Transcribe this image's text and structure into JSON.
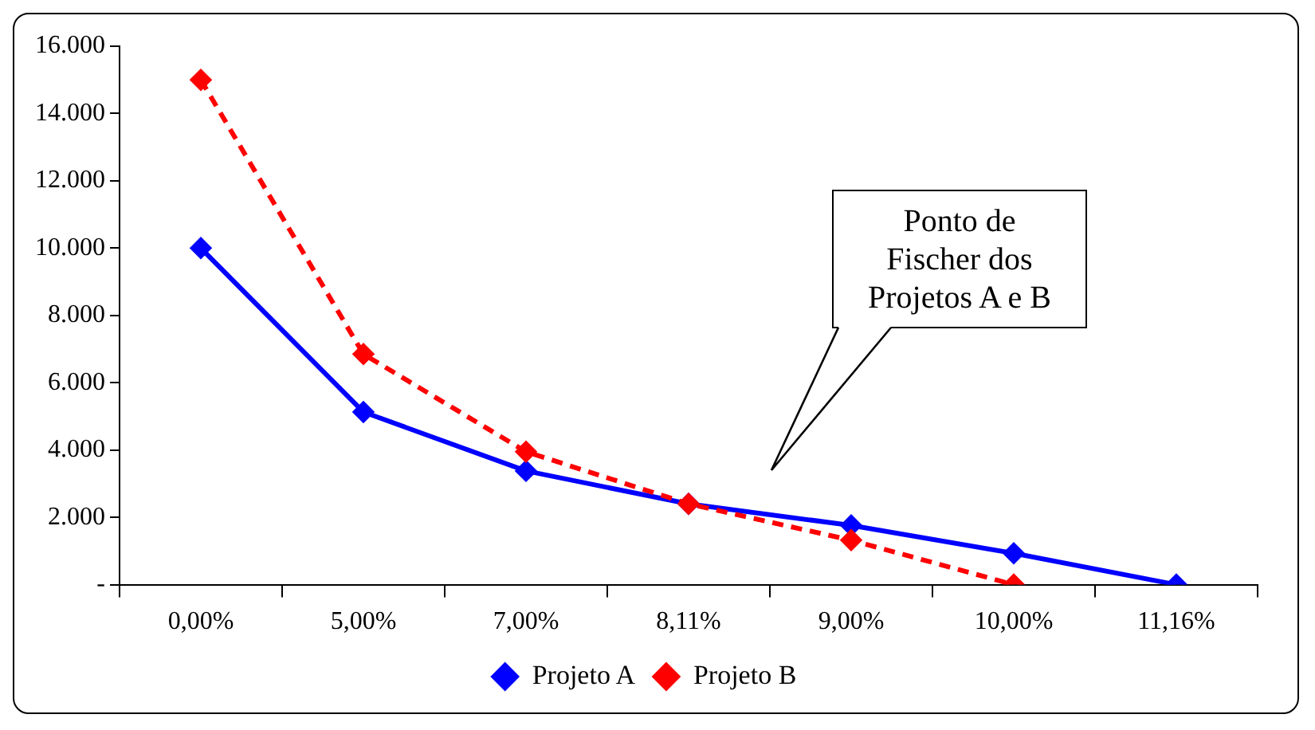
{
  "chart_data": {
    "type": "line",
    "categories": [
      "0,00%",
      "5,00%",
      "7,00%",
      "8,11%",
      "9,00%",
      "10,00%",
      "11,16%"
    ],
    "series": [
      {
        "name": "Projeto A",
        "color": "#0000ff",
        "values": [
          10000,
          5130,
          3380,
          2400,
          1760,
          930,
          0
        ],
        "line_style": "solid"
      },
      {
        "name": "Projeto B",
        "color": "#ff0000",
        "values": [
          15000,
          6850,
          3950,
          2400,
          1320,
          0,
          null
        ],
        "line_style": "dashed"
      }
    ],
    "ylim": [
      0,
      16000
    ],
    "yticks": [
      {
        "value": 0,
        "label": "-"
      },
      {
        "value": 2000,
        "label": "2.000"
      },
      {
        "value": 4000,
        "label": "4.000"
      },
      {
        "value": 6000,
        "label": "6.000"
      },
      {
        "value": 8000,
        "label": "8.000"
      },
      {
        "value": 10000,
        "label": "10.000"
      },
      {
        "value": 12000,
        "label": "12.000"
      },
      {
        "value": 14000,
        "label": "14.000"
      },
      {
        "value": 16000,
        "label": "16.000"
      }
    ],
    "grid": false,
    "legend": "bottom",
    "marker": "diamond",
    "annotations": [
      "Ponto de Fischer dos Projetos A e B"
    ]
  }
}
